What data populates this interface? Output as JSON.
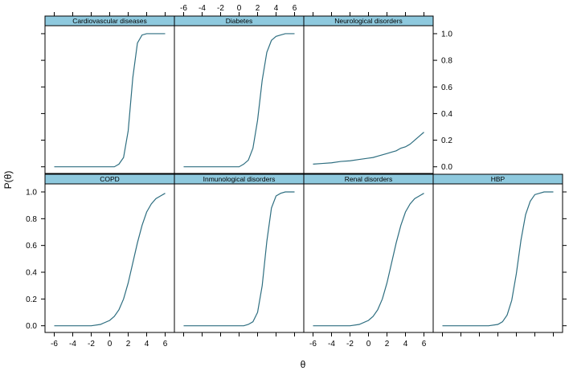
{
  "chart_data": {
    "type": "line",
    "layout": "lattice 4x2 panels, top row 3 panels",
    "xlabel": "θ",
    "ylabel": "P(θ)",
    "xlim": [
      -7,
      7
    ],
    "ylim": [
      -0.05,
      1.06
    ],
    "x_ticks": [
      "-6",
      "-4",
      "-2",
      "0",
      "2",
      "4",
      "6"
    ],
    "y_ticks": [
      "0.0",
      "0.2",
      "0.4",
      "0.6",
      "0.8",
      "1.0"
    ],
    "line_color": "#2E6E80",
    "strip_color": "#8EC9DE",
    "x": [
      -6,
      -5,
      -4,
      -3,
      -2,
      -1,
      0,
      0.5,
      1,
      1.5,
      2,
      2.5,
      3,
      3.5,
      4,
      4.5,
      5,
      5.5,
      6
    ],
    "series": [
      {
        "name": "Cardiovascular diseases",
        "values": [
          0.0,
          0.0,
          0.0,
          0.0,
          0.0,
          0.0,
          0.0,
          0.0,
          0.02,
          0.07,
          0.27,
          0.67,
          0.93,
          0.99,
          1.0,
          1.0,
          1.0,
          1.0,
          1.0
        ]
      },
      {
        "name": "Diabetes",
        "values": [
          0.0,
          0.0,
          0.0,
          0.0,
          0.0,
          0.0,
          0.0,
          0.02,
          0.05,
          0.14,
          0.35,
          0.65,
          0.86,
          0.95,
          0.98,
          0.99,
          1.0,
          1.0,
          1.0
        ]
      },
      {
        "name": "Neurological disorders",
        "values": [
          0.02,
          0.025,
          0.03,
          0.04,
          0.045,
          0.055,
          0.065,
          0.07,
          0.08,
          0.09,
          0.1,
          0.11,
          0.12,
          0.14,
          0.15,
          0.17,
          0.2,
          0.23,
          0.26
        ]
      },
      {
        "name": "COPD",
        "values": [
          0.0,
          0.0,
          0.0,
          0.0,
          0.0,
          0.01,
          0.04,
          0.07,
          0.12,
          0.2,
          0.32,
          0.47,
          0.62,
          0.75,
          0.85,
          0.91,
          0.95,
          0.97,
          0.99
        ]
      },
      {
        "name": "Inmunological disorders",
        "values": [
          0.0,
          0.0,
          0.0,
          0.0,
          0.0,
          0.0,
          0.0,
          0.0,
          0.01,
          0.03,
          0.1,
          0.3,
          0.63,
          0.88,
          0.97,
          0.99,
          1.0,
          1.0,
          1.0
        ]
      },
      {
        "name": "Renal disorders",
        "values": [
          0.0,
          0.0,
          0.0,
          0.0,
          0.0,
          0.01,
          0.04,
          0.07,
          0.12,
          0.2,
          0.32,
          0.47,
          0.62,
          0.75,
          0.85,
          0.91,
          0.95,
          0.97,
          0.99
        ]
      },
      {
        "name": "HBP",
        "values": [
          0.0,
          0.0,
          0.0,
          0.0,
          0.0,
          0.0,
          0.01,
          0.03,
          0.08,
          0.19,
          0.39,
          0.64,
          0.83,
          0.93,
          0.98,
          0.99,
          1.0,
          1.0,
          1.0
        ]
      }
    ]
  }
}
